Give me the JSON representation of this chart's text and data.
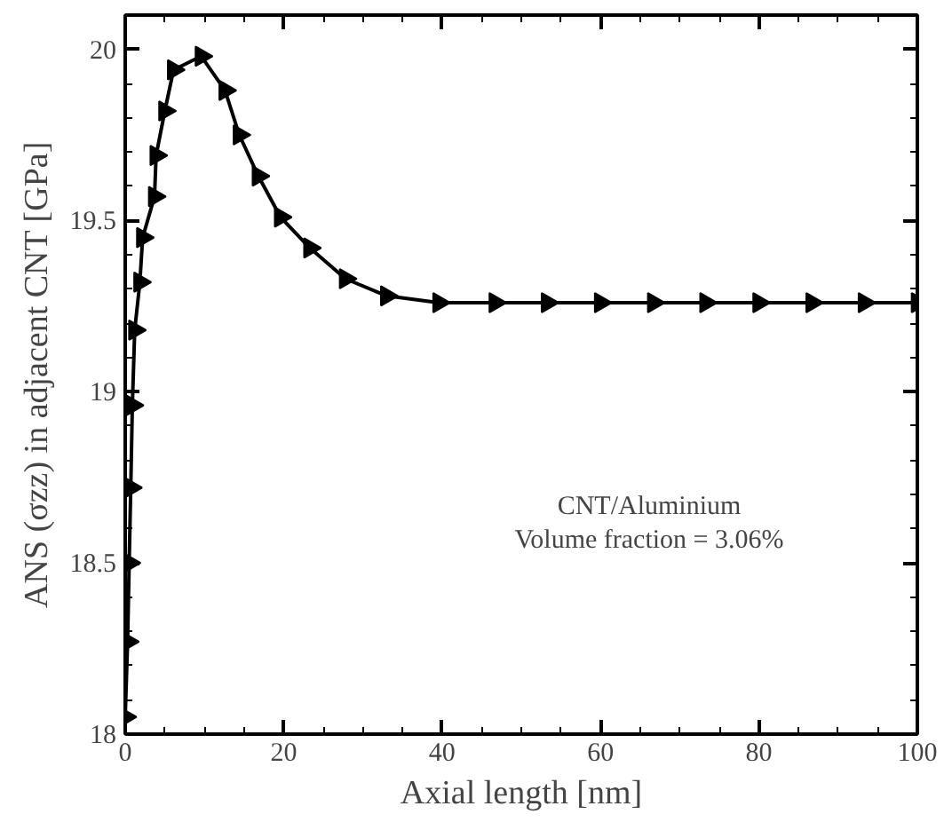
{
  "chart_data": {
    "type": "line",
    "xlabel": "Axial length [nm]",
    "ylabel": "ANS (σzz) in adjacent CNT [GPa]",
    "annotations": [
      "CNT/Aluminium",
      "Volume fraction = 3.06%"
    ],
    "x": [
      0,
      0.3,
      0.5,
      0.7,
      0.9,
      1.2,
      1.85,
      2.2,
      3.7,
      3.9,
      5.0,
      6.1,
      9.6,
      12.6,
      14.4,
      16.8,
      19.6,
      23.3,
      27.8,
      33,
      39.6,
      46.7,
      53.3,
      60,
      66.7,
      73.3,
      80,
      86.7,
      93.3,
      100
    ],
    "series": [
      {
        "color": "#000000",
        "values": [
          18.05,
          18.27,
          18.5,
          18.72,
          18.96,
          19.18,
          19.32,
          19.45,
          19.57,
          19.69,
          19.82,
          19.94,
          19.98,
          19.88,
          19.75,
          19.63,
          19.51,
          19.42,
          19.33,
          19.28,
          19.26,
          19.26,
          19.26,
          19.26,
          19.26,
          19.26,
          19.26,
          19.26,
          19.26,
          19.26
        ]
      }
    ],
    "xlim": [
      0,
      100
    ],
    "ylim": [
      18,
      20.1
    ],
    "xticks": [
      0,
      20,
      40,
      60,
      80,
      100
    ],
    "yticks": [
      18,
      18.5,
      19,
      19.5,
      20
    ],
    "marker": "triangle",
    "line_style": "solid",
    "grid": false
  }
}
